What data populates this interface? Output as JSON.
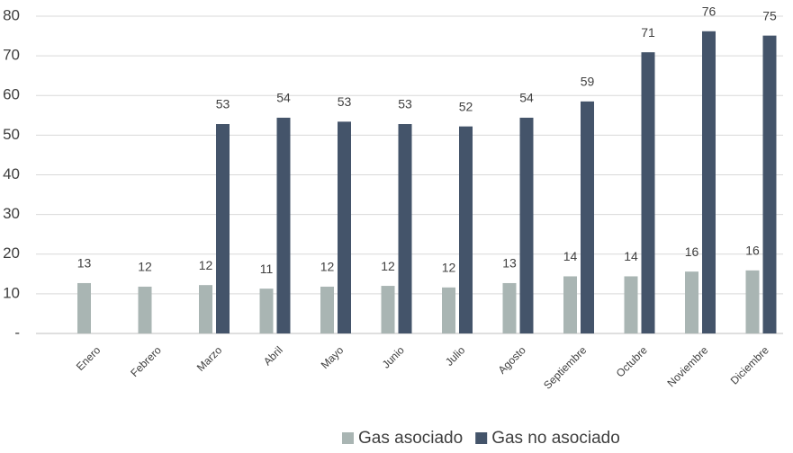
{
  "chart_data": {
    "type": "bar",
    "categories": [
      "Enero",
      "Febrero",
      "Marzo",
      "Abril",
      "Mayo",
      "Junio",
      "Julio",
      "Agosto",
      "Septiembre",
      "Octubre",
      "Noviembre",
      "Diciembre"
    ],
    "series": [
      {
        "name": "Gas asociado",
        "color": "#a9b5b3",
        "values": [
          12.7,
          11.8,
          12.2,
          11.3,
          11.8,
          12.0,
          11.6,
          12.7,
          14.4,
          14.4,
          15.6,
          15.9
        ],
        "value_labels": [
          "13",
          "12",
          "12",
          "11",
          "12",
          "12",
          "12",
          "13",
          "14",
          "14",
          "16",
          "16"
        ]
      },
      {
        "name": "Gas no asociado",
        "color": "#44546a",
        "values": [
          null,
          null,
          52.8,
          54.4,
          53.4,
          52.8,
          52.2,
          54.4,
          58.5,
          70.9,
          76.2,
          75.1
        ],
        "value_labels": [
          null,
          null,
          "53",
          "54",
          "53",
          "53",
          "52",
          "54",
          "59",
          "71",
          "76",
          "75"
        ]
      }
    ],
    "ylim": [
      0,
      80
    ],
    "yticks": [
      {
        "value": 0,
        "label": "-"
      },
      10,
      20,
      30,
      40,
      50,
      60,
      70,
      80
    ],
    "grid": true,
    "legend": "bottom"
  }
}
